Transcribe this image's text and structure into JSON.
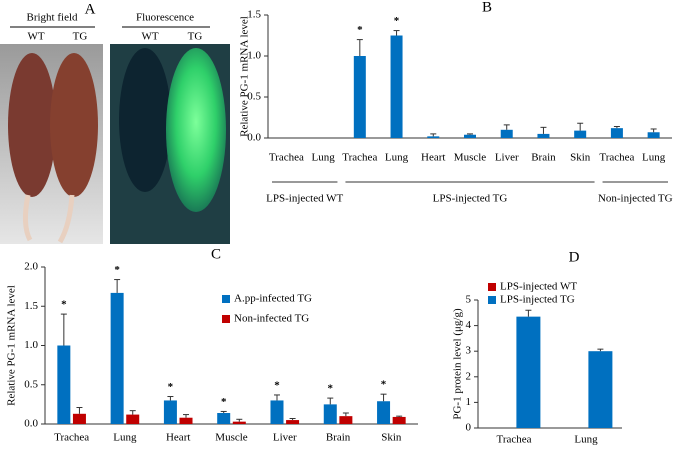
{
  "panel_a": {
    "label": "A",
    "bright_field": {
      "title": "Bright field",
      "labels": [
        "WT",
        "TG"
      ]
    },
    "fluorescence": {
      "title": "Fluorescence",
      "labels": [
        "WT",
        "TG"
      ]
    }
  },
  "chart_data": [
    {
      "type": "bar",
      "panel": "B",
      "ylabel": "Relative PG-1 mRNA level",
      "color": "#0070c0",
      "ylim": [
        0,
        1.5
      ],
      "yticks": [
        {
          "value": 0,
          "label": "0.0"
        },
        {
          "value": 0.5,
          "label": "0.5"
        },
        {
          "value": 1,
          "label": "1.0"
        },
        {
          "value": 1.5,
          "label": "1.5"
        }
      ],
      "groups": [
        {
          "name": "LPS-injected WT",
          "categories": [
            "Trachea",
            "Lung"
          ],
          "values": [
            0,
            0
          ],
          "errors": [
            null,
            null
          ],
          "significance": [
            null,
            null
          ]
        },
        {
          "name": "LPS-injected TG",
          "categories": [
            "Trachea",
            "Lung",
            "Heart",
            "Muscle",
            "Liver",
            "Brain",
            "Skin"
          ],
          "values": [
            1.0,
            1.25,
            0.02,
            0.04,
            0.1,
            0.05,
            0.09
          ],
          "errors": [
            0.2,
            0.06,
            0.03,
            0.01,
            0.06,
            0.08,
            0.09
          ],
          "significance": [
            "*",
            "*",
            null,
            null,
            null,
            null,
            null
          ]
        },
        {
          "name": "Non-injected TG",
          "categories": [
            "Trachea",
            "Lung"
          ],
          "values": [
            0.12,
            0.07
          ],
          "errors": [
            0.02,
            0.04
          ],
          "significance": [
            null,
            null
          ]
        }
      ]
    },
    {
      "type": "bar",
      "panel": "C",
      "ylabel": "Relative PG-1 mRNA level",
      "categories": [
        "Trachea",
        "Lung",
        "Heart",
        "Muscle",
        "Liver",
        "Brain",
        "Skin"
      ],
      "ylim": [
        0,
        2
      ],
      "yticks": [
        {
          "value": 0,
          "label": "0.0"
        },
        {
          "value": 0.5,
          "label": "0.5"
        },
        {
          "value": 1,
          "label": "1.0"
        },
        {
          "value": 1.5,
          "label": "1.5"
        },
        {
          "value": 2,
          "label": "2.0"
        }
      ],
      "legend": "upper right",
      "series": [
        {
          "name": "A.pp-infected TG",
          "color": "#0070c0",
          "values": [
            1.0,
            1.67,
            0.3,
            0.14,
            0.3,
            0.25,
            0.29
          ],
          "errors": [
            0.4,
            0.17,
            0.05,
            0.02,
            0.07,
            0.08,
            0.09
          ],
          "significance": [
            "*",
            "*",
            "*",
            "*",
            "*",
            "*",
            "*"
          ]
        },
        {
          "name": "Non-infected TG",
          "color": "#c00000",
          "values": [
            0.13,
            0.12,
            0.08,
            0.03,
            0.05,
            0.1,
            0.09
          ],
          "errors": [
            0.08,
            0.05,
            0.04,
            0.03,
            0.02,
            0.04,
            0.01
          ]
        }
      ]
    },
    {
      "type": "bar",
      "panel": "D",
      "ylabel": "PG-1 protein level (μg/g)",
      "categories": [
        "Trachea",
        "Lung"
      ],
      "ylim": [
        0,
        5
      ],
      "yticks": [
        0,
        1,
        2,
        3,
        4,
        5
      ],
      "legend": "upper left",
      "series": [
        {
          "name": "LPS-injected WT",
          "color": "#c00000",
          "values": [
            0,
            0
          ],
          "errors": [
            null,
            null
          ]
        },
        {
          "name": "LPS-injected TG",
          "color": "#0070c0",
          "values": [
            4.35,
            3.0
          ],
          "errors": [
            0.25,
            0.08
          ]
        }
      ]
    }
  ]
}
